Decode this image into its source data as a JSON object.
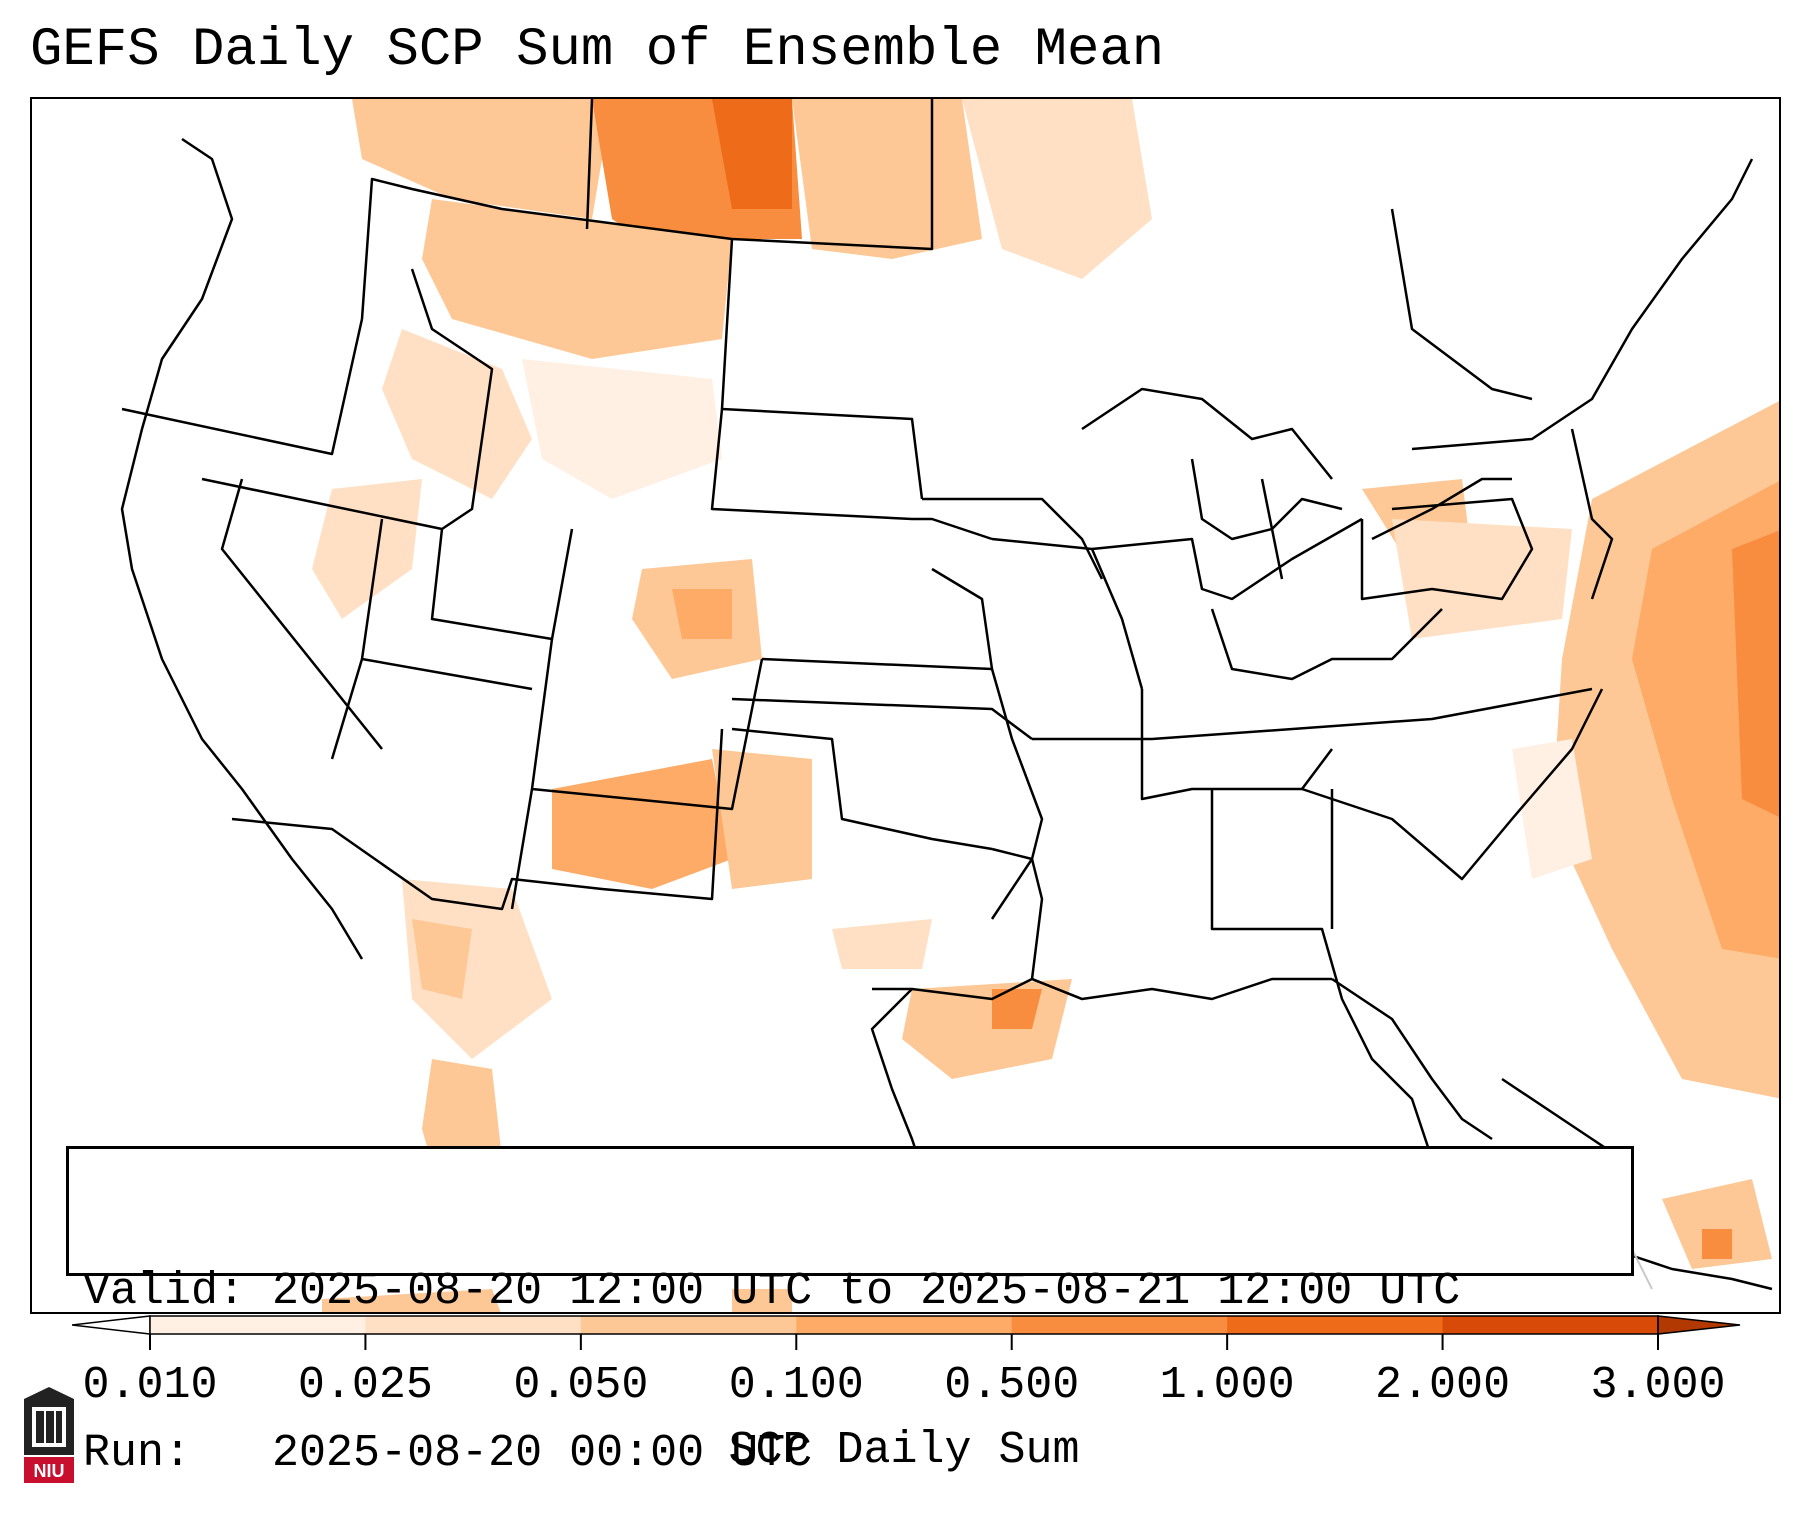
{
  "title": "GEFS Daily SCP Sum of Ensemble Mean",
  "info": {
    "valid_label": "Valid:",
    "valid_value": "2025-08-20 12:00 UTC to 2025-08-21 12:00 UTC",
    "run_label": "Run:",
    "run_value": "2025-08-20 00:00 UTC"
  },
  "colorbar": {
    "title": "SCP Daily Sum",
    "ticks": [
      "0.010",
      "0.025",
      "0.050",
      "0.100",
      "0.500",
      "1.000",
      "2.000",
      "3.000"
    ],
    "colors": [
      "#fff0e3",
      "#ffe0c4",
      "#fdc895",
      "#fdab66",
      "#f98d3f",
      "#ee6b1a",
      "#d84a08",
      "#b23902"
    ],
    "extend": "both"
  },
  "logo": {
    "text": "NIU",
    "color": "#c8102e"
  }
}
